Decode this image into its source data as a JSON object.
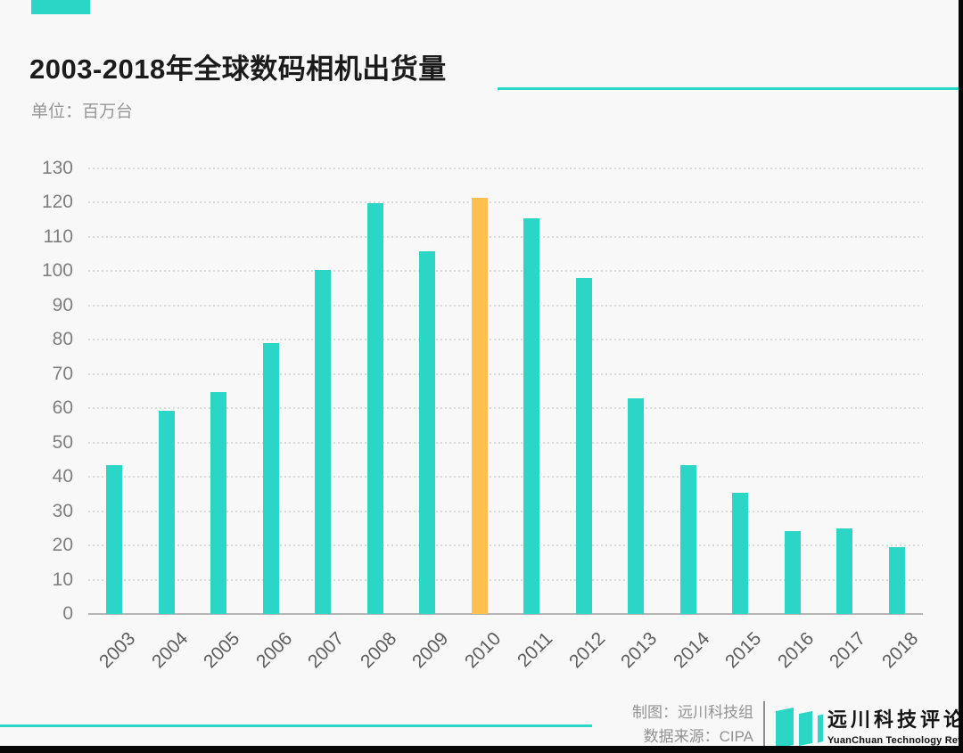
{
  "page": {
    "background": "#f8f8f8",
    "accent_teal": "#2BD6C7",
    "accent_orange": "#FFC04E"
  },
  "header": {
    "title": "2003-2018年全球数码相机出货量",
    "subtitle": "单位：百万台"
  },
  "chart_data": {
    "type": "bar",
    "title": "2003-2018年全球数码相机出货量",
    "unit_label": "单位：百万台",
    "categories": [
      "2003",
      "2004",
      "2005",
      "2006",
      "2007",
      "2008",
      "2009",
      "2010",
      "2011",
      "2012",
      "2013",
      "2014",
      "2015",
      "2016",
      "2017",
      "2018"
    ],
    "values": [
      43.4,
      59.4,
      64.8,
      79.0,
      100.4,
      119.8,
      105.9,
      121.5,
      115.5,
      98.1,
      62.8,
      43.4,
      35.4,
      24.2,
      25.0,
      19.4
    ],
    "highlight_category": "2010",
    "bar_color": "#2BD6C7",
    "highlight_color": "#FFC04E",
    "xlabel": "",
    "ylabel": "",
    "ylim": [
      0,
      130
    ],
    "ytick_step": 10,
    "grid": "horizontal-dotted",
    "legend": "none"
  },
  "footer": {
    "credit_line1": "制图：远川科技组",
    "credit_line2": "数据来源：CIPA",
    "logo_cn": "远川科技评论",
    "logo_en": "YuanChuan Technology Review"
  }
}
